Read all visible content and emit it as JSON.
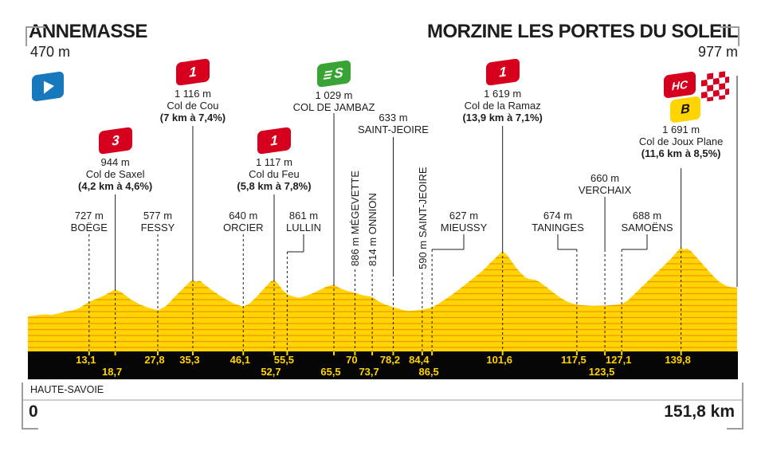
{
  "header": {
    "start": {
      "name": "ANNEMASSE",
      "elevation": "470 m"
    },
    "finish": {
      "name": "MORZINE LES PORTES DU SOLEIL",
      "elevation": "977 m"
    }
  },
  "footer": {
    "department": "HAUTE-SAVOIE",
    "km_start": "0",
    "km_total": "151,8 km"
  },
  "colors": {
    "profile_yellow": "#FFD400",
    "contour_orange": "#F09800",
    "flag_red": "#D6001E",
    "sprint_green": "#3AA335",
    "start_blue": "#1878BE",
    "bar_black": "#060606",
    "text": "#1D1D1B",
    "bracket_gray": "#9D9D9C"
  },
  "chart_data": {
    "type": "area",
    "x_unit": "km",
    "y_unit": "m",
    "x_range": [
      0,
      151.8
    ],
    "grid": "horizontal contour lines inside yellow area",
    "start": {
      "name": "ANNEMASSE",
      "elevation_m": 470,
      "km": 0
    },
    "finish": {
      "name": "MORZINE LES PORTES DU SOLEIL",
      "elevation_m": 977,
      "km": 151.8
    },
    "waypoints": [
      {
        "km": 13.1,
        "elev_label": "727 m",
        "name": "BOËGE",
        "kind": "town"
      },
      {
        "km": 18.7,
        "elev_label": "944 m",
        "name": "Col de Saxel",
        "kind": "climb",
        "category": "3",
        "gradient": "(4,2 km à 4,6%)"
      },
      {
        "km": 27.8,
        "elev_label": "577 m",
        "name": "FESSY",
        "kind": "town"
      },
      {
        "km": 35.3,
        "elev_label": "1 116 m",
        "name": "Col de Cou",
        "kind": "climb",
        "category": "1",
        "gradient": "(7 km à 7,4%)"
      },
      {
        "km": 46.1,
        "elev_label": "640 m",
        "name": "ORCIER",
        "kind": "town"
      },
      {
        "km": 52.7,
        "elev_label": "1 117 m",
        "name": "Col du Feu",
        "kind": "climb",
        "category": "1",
        "gradient": "(5,8 km à 7,8%)"
      },
      {
        "km": 55.5,
        "elev_label": "861 m",
        "name": "LULLIN",
        "kind": "town"
      },
      {
        "km": 65.5,
        "elev_label": "1 029 m",
        "name": "COL DE JAMBAZ",
        "kind": "sprint",
        "category": "S"
      },
      {
        "km": 70,
        "elev_label": "886 m",
        "name": "MÉGEVETTE",
        "kind": "town"
      },
      {
        "km": 73.7,
        "elev_label": "814 m",
        "name": "ONNION",
        "kind": "town"
      },
      {
        "km": 78.2,
        "elev_label": "633 m",
        "name": "SAINT-JEOIRE",
        "kind": "town"
      },
      {
        "km": 84.4,
        "elev_label": "590 m",
        "name": "SAINT-JEOIRE",
        "kind": "town"
      },
      {
        "km": 86.5,
        "elev_label": "627 m",
        "name": "MIEUSSY",
        "kind": "town"
      },
      {
        "km": 101.6,
        "elev_label": "1 619 m",
        "name": "Col de la Ramaz",
        "kind": "climb",
        "category": "1",
        "gradient": "(13,9 km à 7,1%)"
      },
      {
        "km": 117.5,
        "elev_label": "674 m",
        "name": "TANINGES",
        "kind": "town"
      },
      {
        "km": 123.5,
        "elev_label": "660 m",
        "name": "VERCHAIX",
        "kind": "town"
      },
      {
        "km": 127.1,
        "elev_label": "688 m",
        "name": "SAMOËNS",
        "kind": "town"
      },
      {
        "km": 139.8,
        "elev_label": "1 691 m",
        "name": "Col de Joux Plane",
        "kind": "climb",
        "category": "HC",
        "bonus": "B",
        "gradient": "(11,6 km à 8,5%)"
      }
    ],
    "km_markers": {
      "row1": [
        {
          "km": 13.1,
          "label": "13,1"
        },
        {
          "km": 27.8,
          "label": "27,8"
        },
        {
          "km": 35.3,
          "label": "35,3"
        },
        {
          "km": 46.1,
          "label": "46,1"
        },
        {
          "km": 55.5,
          "label": "55,5"
        },
        {
          "km": 70,
          "label": "70"
        },
        {
          "km": 78.2,
          "label": "78,2"
        },
        {
          "km": 84.4,
          "label": "84,4"
        },
        {
          "km": 101.6,
          "label": "101,6"
        },
        {
          "km": 117.5,
          "label": "117,5"
        },
        {
          "km": 127.1,
          "label": "127,1"
        },
        {
          "km": 139.8,
          "label": "139,8"
        }
      ],
      "row2": [
        {
          "km": 18.7,
          "label": "18,7"
        },
        {
          "km": 52.7,
          "label": "52,7"
        },
        {
          "km": 65.5,
          "label": "65,5"
        },
        {
          "km": 73.7,
          "label": "73,7"
        },
        {
          "km": 86.5,
          "label": "86,5"
        },
        {
          "km": 123.5,
          "label": "123,5"
        }
      ]
    },
    "profile_points": [
      [
        0,
        470
      ],
      [
        1,
        478
      ],
      [
        2.5,
        498
      ],
      [
        4,
        505
      ],
      [
        5,
        492
      ],
      [
        6.5,
        520
      ],
      [
        8,
        556
      ],
      [
        9.5,
        572
      ],
      [
        11,
        616
      ],
      [
        13.1,
        727
      ],
      [
        15,
        788
      ],
      [
        16.5,
        848
      ],
      [
        18.7,
        944
      ],
      [
        20,
        896
      ],
      [
        22,
        768
      ],
      [
        24,
        678
      ],
      [
        26,
        618
      ],
      [
        27.8,
        577
      ],
      [
        29.5,
        648
      ],
      [
        31,
        778
      ],
      [
        33,
        948
      ],
      [
        34.5,
        1068
      ],
      [
        35.3,
        1116
      ],
      [
        36,
        1078
      ],
      [
        36.8,
        1102
      ],
      [
        38,
        1018
      ],
      [
        40,
        898
      ],
      [
        42,
        788
      ],
      [
        44,
        698
      ],
      [
        46.1,
        640
      ],
      [
        47.5,
        700
      ],
      [
        49,
        820
      ],
      [
        50.5,
        958
      ],
      [
        52,
        1088
      ],
      [
        52.7,
        1117
      ],
      [
        53.5,
        1048
      ],
      [
        54.5,
        938
      ],
      [
        55.5,
        861
      ],
      [
        56.5,
        828
      ],
      [
        58,
        798
      ],
      [
        59.5,
        834
      ],
      [
        61,
        878
      ],
      [
        62.5,
        938
      ],
      [
        64,
        998
      ],
      [
        65.5,
        1029
      ],
      [
        66.5,
        978
      ],
      [
        68,
        928
      ],
      [
        70,
        886
      ],
      [
        71.5,
        848
      ],
      [
        73.7,
        814
      ],
      [
        75,
        738
      ],
      [
        76.5,
        678
      ],
      [
        78.2,
        633
      ],
      [
        80,
        588
      ],
      [
        81.5,
        563
      ],
      [
        83,
        574
      ],
      [
        84.4,
        590
      ],
      [
        85.5,
        608
      ],
      [
        86.5,
        627
      ],
      [
        88,
        698
      ],
      [
        90,
        808
      ],
      [
        92,
        928
      ],
      [
        94,
        1058
      ],
      [
        96,
        1188
      ],
      [
        97.5,
        1288
      ],
      [
        99,
        1418
      ],
      [
        100.5,
        1538
      ],
      [
        101.6,
        1619
      ],
      [
        102.5,
        1558
      ],
      [
        103.5,
        1448
      ],
      [
        104.5,
        1328
      ],
      [
        105.5,
        1238
      ],
      [
        106.5,
        1158
      ],
      [
        107.5,
        1128
      ],
      [
        108.5,
        1118
      ],
      [
        109.5,
        1078
      ],
      [
        111,
        988
      ],
      [
        112.5,
        888
      ],
      [
        114,
        798
      ],
      [
        115.5,
        728
      ],
      [
        117.5,
        674
      ],
      [
        119,
        664
      ],
      [
        121,
        654
      ],
      [
        123.5,
        660
      ],
      [
        125,
        668
      ],
      [
        127.1,
        688
      ],
      [
        128.5,
        758
      ],
      [
        130,
        878
      ],
      [
        131.5,
        998
      ],
      [
        133,
        1118
      ],
      [
        134.5,
        1238
      ],
      [
        136,
        1358
      ],
      [
        137.5,
        1478
      ],
      [
        138.8,
        1598
      ],
      [
        139.8,
        1691
      ],
      [
        140.4,
        1652
      ],
      [
        141.1,
        1668
      ],
      [
        142,
        1618
      ],
      [
        143.5,
        1478
      ],
      [
        145,
        1338
      ],
      [
        146.5,
        1198
      ],
      [
        148,
        1078
      ],
      [
        149.5,
        1008
      ],
      [
        150.6,
        984
      ],
      [
        151.8,
        977
      ]
    ]
  }
}
